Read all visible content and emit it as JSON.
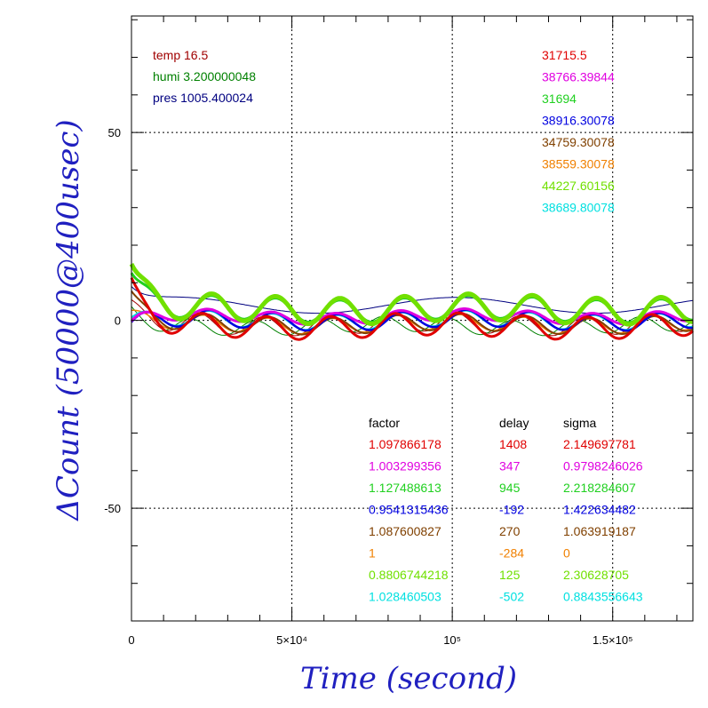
{
  "chart_data": {
    "type": "line",
    "title": "",
    "xlabel": "Time (second)",
    "ylabel": "ΔCount (50000@400usec)",
    "xlim": [
      0,
      175000
    ],
    "ylim": [
      -80,
      81
    ],
    "grid": true,
    "x_ticks": [
      {
        "value": 0,
        "label": "0"
      },
      {
        "value": 50000,
        "label": "5×10⁴"
      },
      {
        "value": 100000,
        "label": "10⁵"
      },
      {
        "value": 150000,
        "label": "1.5×10⁵"
      }
    ],
    "y_ticks": [
      {
        "value": 50,
        "label": "50"
      },
      {
        "value": 0,
        "label": "0"
      },
      {
        "value": -50,
        "label": "-50"
      }
    ],
    "env": [
      {
        "text": "temp 16.5",
        "color": "#a00000"
      },
      {
        "text": "humi 3.200000048",
        "color": "#008000"
      },
      {
        "text": "pres 1005.400024",
        "color": "#000080"
      }
    ],
    "ids": [
      {
        "text": "31715.5",
        "color": "#e00000"
      },
      {
        "text": "38766.39844",
        "color": "#e000e0"
      },
      {
        "text": "31694",
        "color": "#20d020"
      },
      {
        "text": "38916.30078",
        "color": "#0000e0"
      },
      {
        "text": "34759.30078",
        "color": "#804000"
      },
      {
        "text": "38559.30078",
        "color": "#f08000"
      },
      {
        "text": "44227.60156",
        "color": "#70e000"
      },
      {
        "text": "38689.80078",
        "color": "#00e0e0"
      }
    ],
    "table": {
      "headers": [
        "factor",
        "delay",
        "sigma"
      ],
      "rows": [
        {
          "factor": "1.097866178",
          "delay": "1408",
          "sigma": "2.149697781",
          "color": "#e00000"
        },
        {
          "factor": "1.003299356",
          "delay": "347",
          "sigma": "0.9798246026",
          "color": "#e000e0"
        },
        {
          "factor": "1.127488613",
          "delay": "945",
          "sigma": "2.218284607",
          "color": "#20d020"
        },
        {
          "factor": "0.9541315436",
          "delay": "-192",
          "sigma": "1.422634482",
          "color": "#0000e0"
        },
        {
          "factor": "1.087600827",
          "delay": "270",
          "sigma": "1.063919187",
          "color": "#804000"
        },
        {
          "factor": "1",
          "delay": "-284",
          "sigma": "0",
          "color": "#f08000"
        },
        {
          "factor": "0.8806744218",
          "delay": "125",
          "sigma": "2.30628705",
          "color": "#70e000"
        },
        {
          "factor": "1.028460503",
          "delay": "-502",
          "sigma": "0.8843556643",
          "color": "#00e0e0"
        }
      ]
    },
    "series": [
      {
        "color": "#000080",
        "width": 1,
        "offset": 4,
        "amp": 1.5,
        "period": 86400,
        "phase": 0.5,
        "start": 9,
        "decay": 0.8
      },
      {
        "color": "#a00000",
        "width": 1,
        "offset": -1,
        "amp": 2.5,
        "period": 20000,
        "phase": 1.2,
        "start": 3,
        "decay": 0.9
      },
      {
        "color": "#008000",
        "width": 1,
        "offset": -1.5,
        "amp": 2,
        "period": 20000,
        "phase": 2.0,
        "start": 2,
        "decay": 0.8
      },
      {
        "color": "#f08000",
        "width": 1.5,
        "offset": -1,
        "amp": 2,
        "period": 20000,
        "phase": 0.8,
        "start": 2,
        "decay": 0.6
      },
      {
        "color": "#804000",
        "width": 2,
        "offset": -1,
        "amp": 2.2,
        "period": 20000,
        "phase": 0.6,
        "start": 8,
        "decay": 0.8
      },
      {
        "color": "#00e0e0",
        "width": 2,
        "offset": 0,
        "amp": 2,
        "period": 20000,
        "phase": 0.3,
        "start": 0,
        "decay": 0.5
      },
      {
        "color": "#0000e0",
        "width": 2.5,
        "offset": 0,
        "amp": 2.2,
        "period": 20000,
        "phase": 0.2,
        "start": -2,
        "decay": 0.5
      },
      {
        "color": "#e000e0",
        "width": 3,
        "offset": 1,
        "amp": 1.5,
        "period": 20000,
        "phase": 0.4,
        "start": -3,
        "decay": 0.5
      },
      {
        "color": "#e00000",
        "width": 3,
        "offset": -1.5,
        "amp": 3,
        "period": 20000,
        "phase": 0.9,
        "start": 11,
        "decay": 0.8
      },
      {
        "color": "#20d020",
        "width": 3,
        "offset": 3,
        "amp": 3,
        "period": 20000,
        "phase": 0.0,
        "start": 15,
        "decay": 0.8
      },
      {
        "color": "#70e000",
        "width": 5,
        "offset": 3,
        "amp": 3.5,
        "period": 20000,
        "phase": 0.0,
        "start": 18,
        "decay": 0.8
      }
    ]
  }
}
